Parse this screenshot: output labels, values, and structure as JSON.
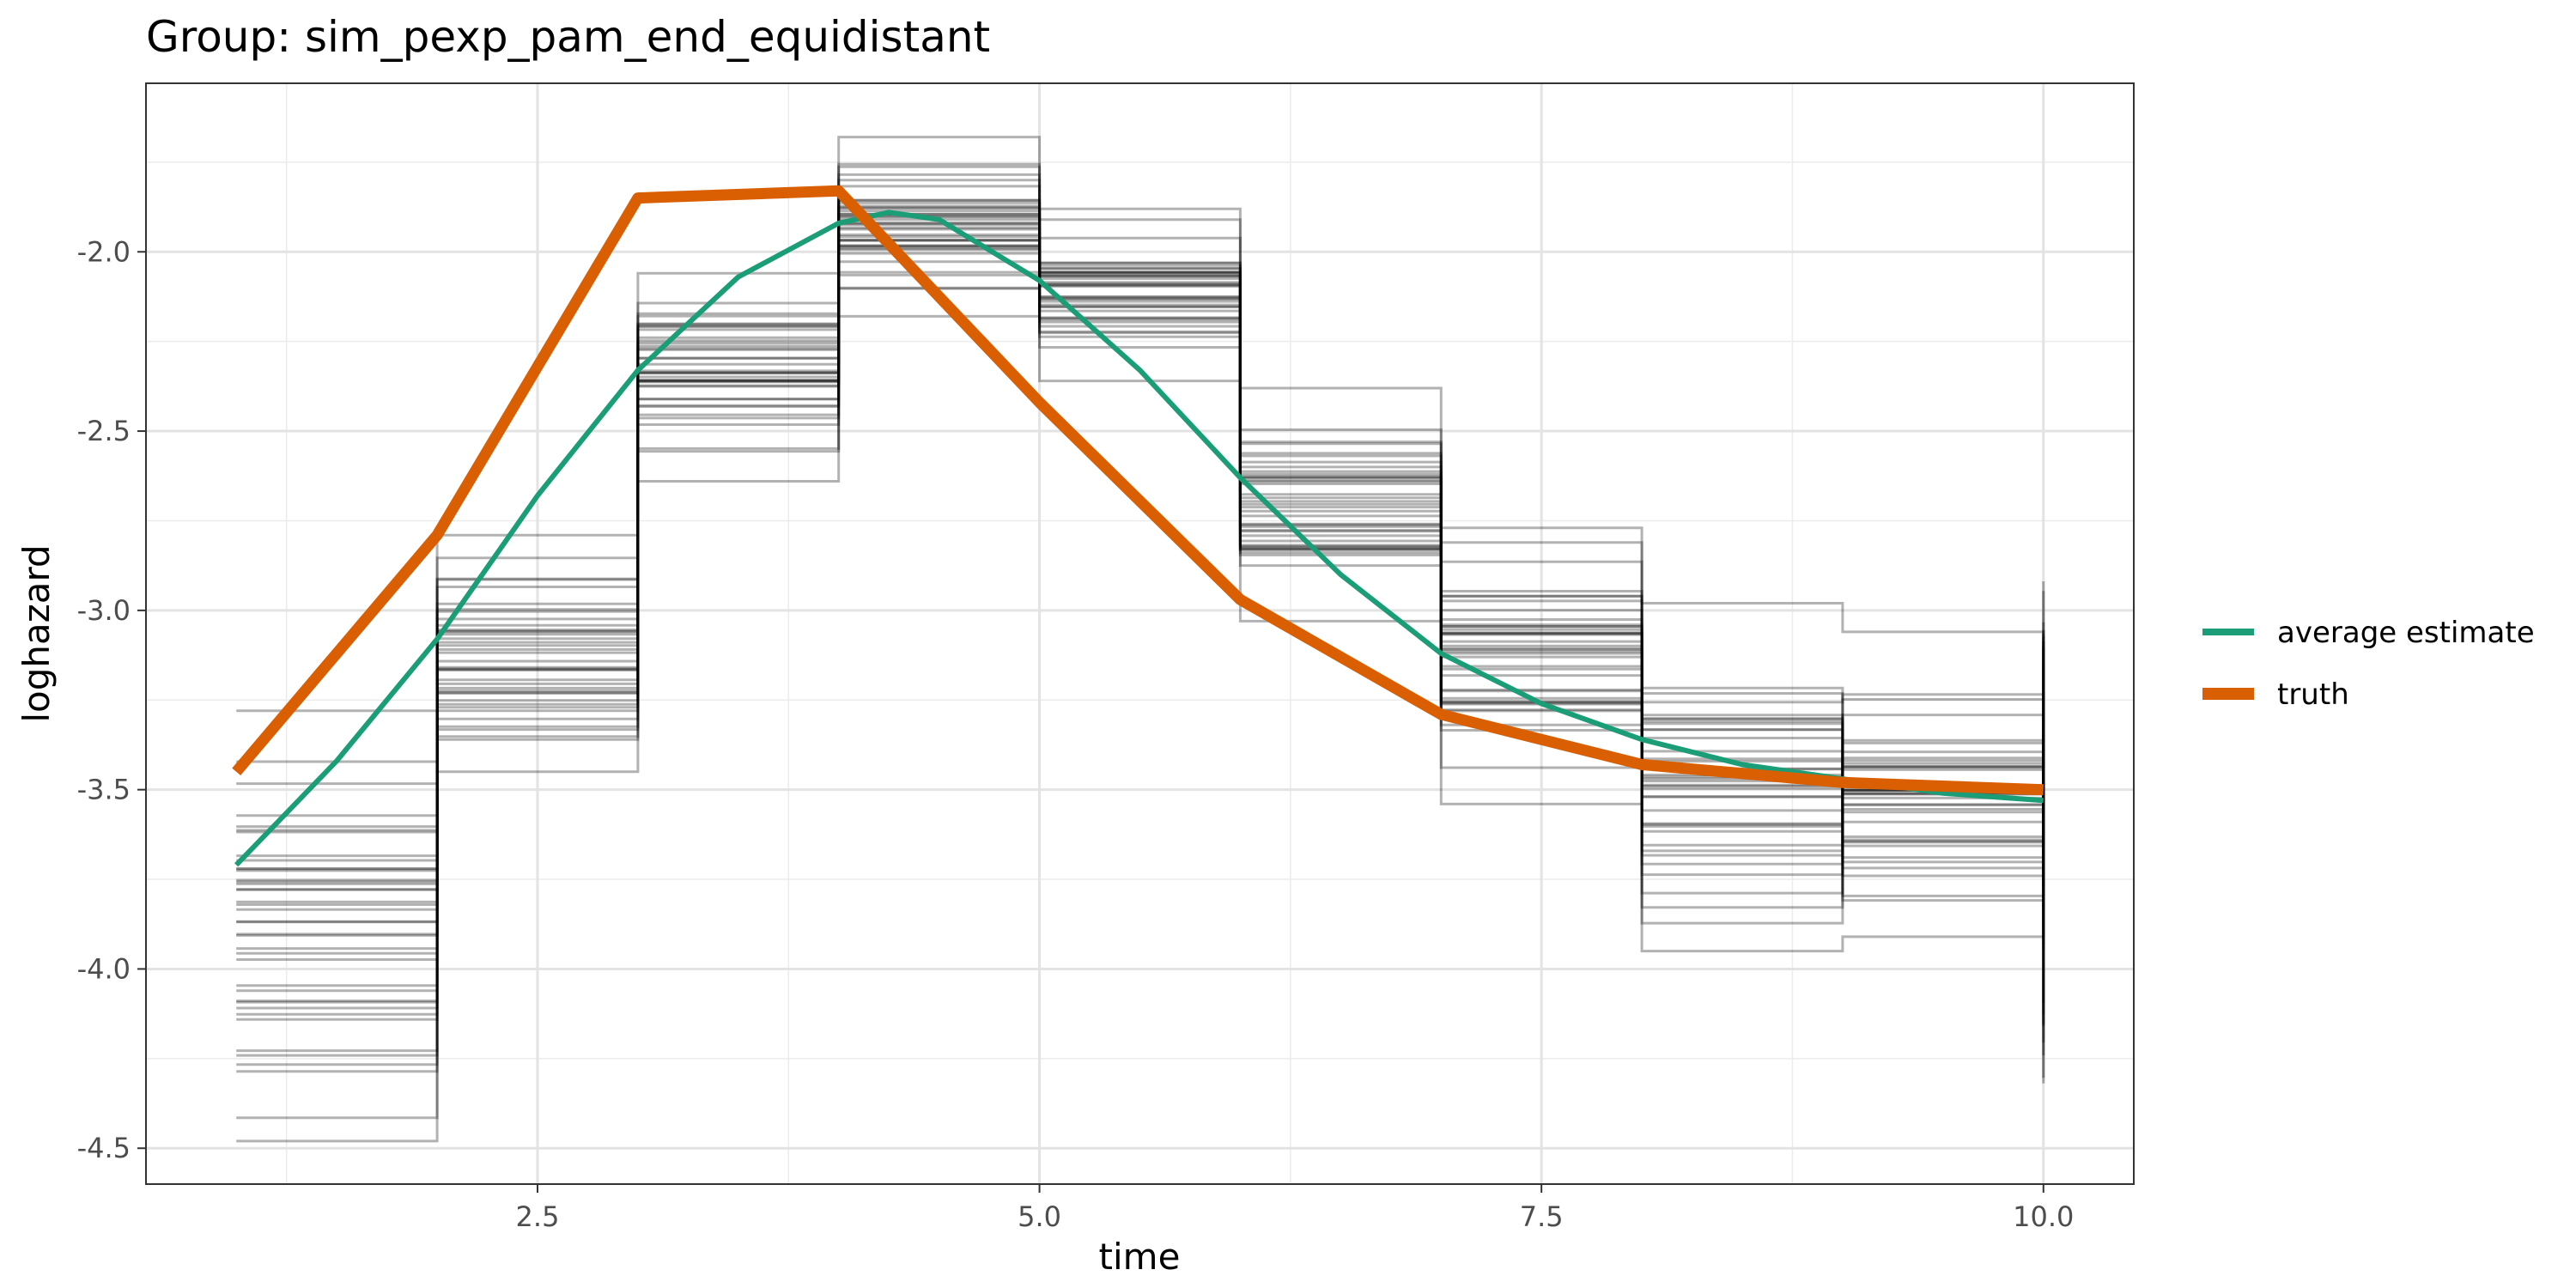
{
  "chart_data": {
    "type": "line",
    "title": "Group: sim_pexp_pam_end_equidistant",
    "xlabel": "time",
    "ylabel": "loghazard",
    "xlim": [
      0.55,
      10.45
    ],
    "ylim": [
      -4.6,
      -1.53
    ],
    "x_ticks": [
      {
        "value": 2.5,
        "label": "2.5"
      },
      {
        "value": 5.0,
        "label": "5.0"
      },
      {
        "value": 7.5,
        "label": "7.5"
      },
      {
        "value": 10.0,
        "label": "10.0"
      }
    ],
    "y_ticks": [
      {
        "value": -2.0,
        "label": "-2.0"
      },
      {
        "value": -2.5,
        "label": "-2.5"
      },
      {
        "value": -3.0,
        "label": "-3.0"
      },
      {
        "value": -3.5,
        "label": "-3.5"
      },
      {
        "value": -4.0,
        "label": "-4.0"
      },
      {
        "value": -4.5,
        "label": "-4.5"
      }
    ],
    "grid": true,
    "legend_position": "right",
    "step_estimates": {
      "color": "#000000",
      "opacity": 0.3,
      "breaks": [
        1,
        2,
        3,
        4,
        5,
        6,
        7,
        8,
        9,
        10
      ],
      "interval_ranges": [
        {
          "from": 1,
          "to": 2,
          "min": -4.48,
          "max": -3.28
        },
        {
          "from": 2,
          "to": 3,
          "min": -3.45,
          "max": -2.79
        },
        {
          "from": 3,
          "to": 4,
          "min": -2.64,
          "max": -2.06
        },
        {
          "from": 4,
          "to": 5,
          "min": -2.18,
          "max": -1.68
        },
        {
          "from": 5,
          "to": 6,
          "min": -2.36,
          "max": -1.88
        },
        {
          "from": 6,
          "to": 7,
          "min": -3.03,
          "max": -2.38
        },
        {
          "from": 7,
          "to": 8,
          "min": -3.54,
          "max": -2.77
        },
        {
          "from": 8,
          "to": 9,
          "min": -3.95,
          "max": -2.98
        },
        {
          "from": 9,
          "to": 10,
          "min": -3.91,
          "max": -3.06
        }
      ],
      "end_range": {
        "x": 10,
        "min": -4.32,
        "max": -2.88
      }
    },
    "series": [
      {
        "name": "average estimate",
        "color": "#1b9e77",
        "x": [
          1.0,
          1.5,
          2.0,
          2.5,
          3.0,
          3.5,
          4.0,
          4.25,
          4.5,
          5.0,
          5.5,
          6.0,
          6.5,
          7.0,
          7.5,
          8.0,
          8.5,
          9.0,
          9.5,
          10.0
        ],
        "values": [
          -3.71,
          -3.42,
          -3.08,
          -2.68,
          -2.33,
          -2.07,
          -1.92,
          -1.89,
          -1.91,
          -2.08,
          -2.33,
          -2.63,
          -2.9,
          -3.12,
          -3.26,
          -3.36,
          -3.43,
          -3.47,
          -3.51,
          -3.53
        ]
      },
      {
        "name": "truth",
        "color": "#d95f02",
        "x": [
          1,
          2,
          3,
          4,
          5,
          6,
          7,
          8,
          9,
          10
        ],
        "values": [
          -3.45,
          -2.79,
          -1.85,
          -1.83,
          -2.42,
          -2.97,
          -3.29,
          -3.43,
          -3.48,
          -3.5
        ]
      }
    ]
  }
}
